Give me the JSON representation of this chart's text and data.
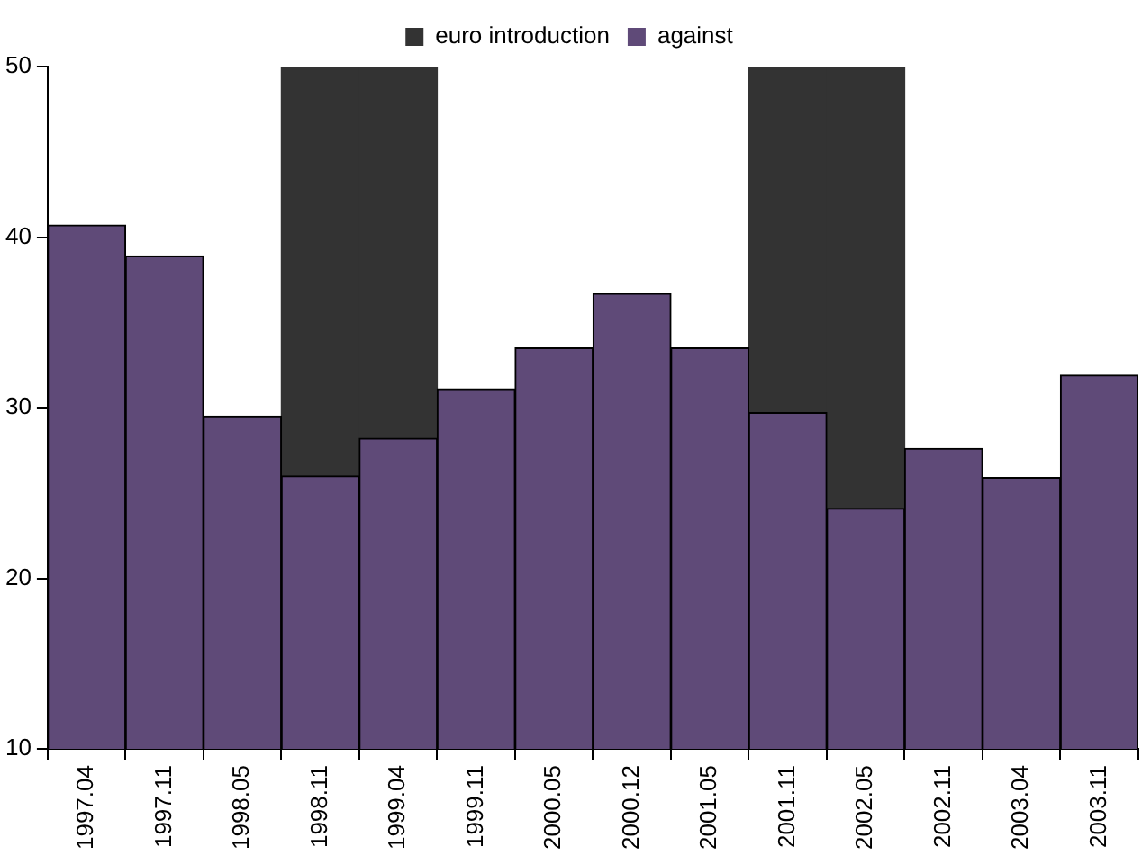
{
  "chart_data": {
    "type": "bar",
    "categories": [
      "1997.04",
      "1997.11",
      "1998.05",
      "1998.11",
      "1999.04",
      "1999.11",
      "2000.05",
      "2000.12",
      "2001.05",
      "2001.11",
      "2002.05",
      "2002.11",
      "2003.04",
      "2003.11"
    ],
    "series": [
      {
        "name": "euro introduction",
        "color": "#333333",
        "values": [
          null,
          null,
          null,
          50,
          50,
          null,
          null,
          null,
          null,
          50,
          50,
          null,
          null,
          null
        ]
      },
      {
        "name": "against",
        "color": "#5f4a78",
        "values": [
          40.7,
          38.9,
          29.5,
          26.0,
          28.2,
          31.1,
          33.5,
          36.7,
          33.5,
          29.7,
          24.1,
          27.6,
          25.9,
          31.9
        ]
      }
    ],
    "ylim": [
      10,
      50
    ],
    "yticks": [
      10,
      20,
      30,
      40,
      50
    ],
    "grid": false,
    "legend": "top"
  }
}
